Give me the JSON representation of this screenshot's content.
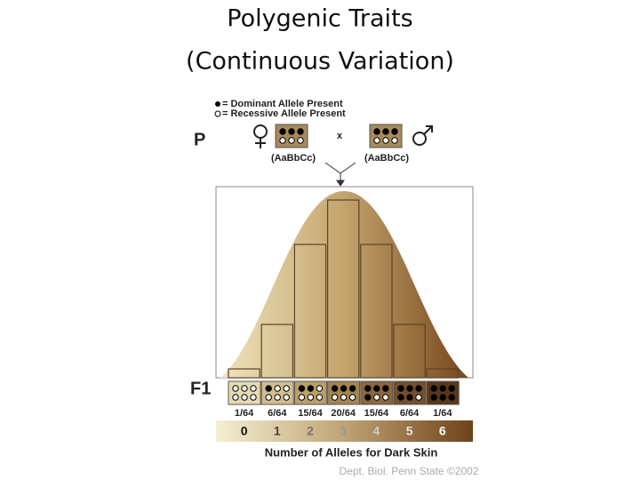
{
  "title": [
    "Polygenic Traits",
    "(Continuous Variation)"
  ],
  "legend": {
    "dominant": "= Dominant Allele Present",
    "recessive": "= Recessive Allele Present"
  },
  "parent": {
    "label": "P",
    "cross": "x",
    "female_genotype": "(AaBbCc)",
    "male_genotype": "(AaBbCc)"
  },
  "f1_label": "F1",
  "chart_data": {
    "type": "bar",
    "categories": [
      "0",
      "1",
      "2",
      "3",
      "4",
      "5",
      "6"
    ],
    "values": [
      0.015625,
      0.09375,
      0.234375,
      0.3125,
      0.234375,
      0.09375,
      0.015625
    ],
    "value_labels": [
      "1/64",
      "6/64",
      "15/64",
      "20/64",
      "15/64",
      "6/64",
      "1/64"
    ],
    "x_label": "Number of Alleles for Dark Skin"
  },
  "credit": "Dept. Biol. Penn State ©2002"
}
